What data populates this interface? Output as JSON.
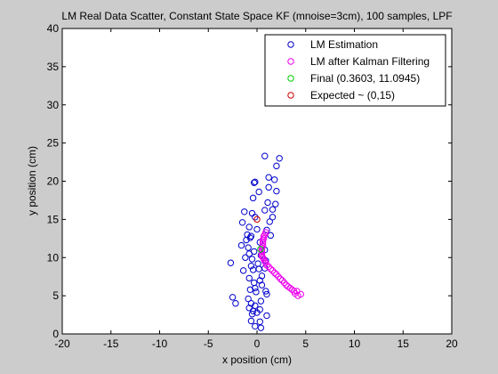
{
  "chart_data": {
    "type": "scatter",
    "title": "LM Real Data Scatter, Constant State Space KF (mnoise=3cm), 100 samples, LPF",
    "xlabel": "x position (cm)",
    "ylabel": "y position (cm)",
    "xlim": [
      -20,
      20
    ],
    "ylim": [
      0,
      40
    ],
    "x_ticks": [
      -20,
      -15,
      -10,
      -5,
      0,
      5,
      10,
      15,
      20
    ],
    "y_ticks": [
      0,
      5,
      10,
      15,
      20,
      25,
      30,
      35,
      40
    ],
    "grid": false,
    "legend_position": "top-right",
    "series": [
      {
        "name": "LM Estimation",
        "color": "#0000cc",
        "marker": "circle-open",
        "points": [
          [
            0.8,
            23.3
          ],
          [
            2.3,
            23.0
          ],
          [
            2.0,
            22.0
          ],
          [
            1.2,
            20.5
          ],
          [
            1.8,
            20.2
          ],
          [
            -0.2,
            19.9
          ],
          [
            -0.3,
            19.8
          ],
          [
            0.2,
            18.6
          ],
          [
            1.2,
            19.2
          ],
          [
            2.0,
            18.7
          ],
          [
            -0.4,
            17.8
          ],
          [
            1.1,
            17.2
          ],
          [
            1.9,
            17.0
          ],
          [
            1.6,
            16.3
          ],
          [
            0.8,
            16.2
          ],
          [
            -1.3,
            16.0
          ],
          [
            -0.5,
            15.8
          ],
          [
            -0.2,
            15.3
          ],
          [
            1.6,
            15.3
          ],
          [
            1.3,
            14.7
          ],
          [
            -1.5,
            14.6
          ],
          [
            -0.8,
            14.0
          ],
          [
            0.0,
            13.7
          ],
          [
            1.0,
            13.6
          ],
          [
            -1.0,
            13.0
          ],
          [
            -0.6,
            12.8
          ],
          [
            -0.7,
            12.6
          ],
          [
            1.4,
            12.9
          ],
          [
            -1.1,
            12.3
          ],
          [
            0.3,
            12.0
          ],
          [
            -1.6,
            11.6
          ],
          [
            -0.9,
            11.3
          ],
          [
            0.8,
            11.0
          ],
          [
            -0.3,
            10.8
          ],
          [
            -0.8,
            10.5
          ],
          [
            0.4,
            10.3
          ],
          [
            -1.2,
            10.0
          ],
          [
            -0.5,
            9.8
          ],
          [
            0.9,
            9.6
          ],
          [
            -2.7,
            9.3
          ],
          [
            0.1,
            9.2
          ],
          [
            -0.6,
            8.9
          ],
          [
            0.8,
            8.6
          ],
          [
            0.2,
            8.5
          ],
          [
            -0.4,
            8.4
          ],
          [
            -1.4,
            8.3
          ],
          [
            0.5,
            7.6
          ],
          [
            -0.8,
            7.3
          ],
          [
            0.3,
            7.0
          ],
          [
            -0.3,
            6.7
          ],
          [
            0.5,
            6.4
          ],
          [
            -0.2,
            6.0
          ],
          [
            -0.7,
            5.8
          ],
          [
            0.9,
            5.6
          ],
          [
            -0.1,
            5.5
          ],
          [
            1.0,
            5.2
          ],
          [
            -2.5,
            4.8
          ],
          [
            -0.9,
            4.6
          ],
          [
            0.4,
            4.3
          ],
          [
            -2.2,
            4.0
          ],
          [
            -0.6,
            4.0
          ],
          [
            -0.2,
            3.7
          ],
          [
            -0.8,
            3.4
          ],
          [
            0.3,
            3.2
          ],
          [
            -0.4,
            3.0
          ],
          [
            0.0,
            2.8
          ],
          [
            -0.5,
            2.6
          ],
          [
            1.0,
            2.4
          ],
          [
            -0.6,
            1.7
          ],
          [
            0.3,
            1.6
          ],
          [
            -0.2,
            1.0
          ],
          [
            0.4,
            0.8
          ]
        ]
      },
      {
        "name": "LM after Kalman Filtering",
        "color": "#ee00ee",
        "marker": "circle-open",
        "points": [
          [
            0.9,
            13.3
          ],
          [
            0.8,
            13.0
          ],
          [
            0.7,
            12.8
          ],
          [
            0.7,
            12.5
          ],
          [
            0.6,
            12.3
          ],
          [
            0.6,
            12.0
          ],
          [
            0.6,
            11.8
          ],
          [
            0.6,
            11.5
          ],
          [
            0.5,
            11.3
          ],
          [
            0.5,
            11.0
          ],
          [
            0.5,
            10.8
          ],
          [
            0.5,
            10.5
          ],
          [
            0.5,
            10.2
          ],
          [
            0.6,
            10.0
          ],
          [
            0.7,
            9.8
          ],
          [
            0.8,
            9.5
          ],
          [
            0.9,
            9.3
          ],
          [
            1.0,
            9.0
          ],
          [
            1.2,
            8.8
          ],
          [
            1.4,
            8.5
          ],
          [
            1.6,
            8.3
          ],
          [
            1.8,
            8.0
          ],
          [
            2.0,
            7.8
          ],
          [
            2.2,
            7.5
          ],
          [
            2.4,
            7.2
          ],
          [
            2.6,
            7.0
          ],
          [
            2.8,
            6.7
          ],
          [
            3.0,
            6.4
          ],
          [
            3.2,
            6.2
          ],
          [
            3.4,
            6.0
          ],
          [
            3.6,
            5.8
          ],
          [
            3.8,
            5.6
          ],
          [
            4.1,
            5.6
          ],
          [
            3.9,
            5.3
          ],
          [
            4.5,
            5.2
          ],
          [
            4.2,
            5.0
          ]
        ]
      },
      {
        "name": "Final (0.3603, 11.0945)",
        "color": "#00cc00",
        "marker": "circle-open",
        "points": [
          [
            0.3603,
            11.0945
          ]
        ]
      },
      {
        "name": "Expected ~ (0,15)",
        "color": "#cc0000",
        "marker": "circle-open",
        "points": [
          [
            0,
            15
          ]
        ]
      }
    ]
  }
}
